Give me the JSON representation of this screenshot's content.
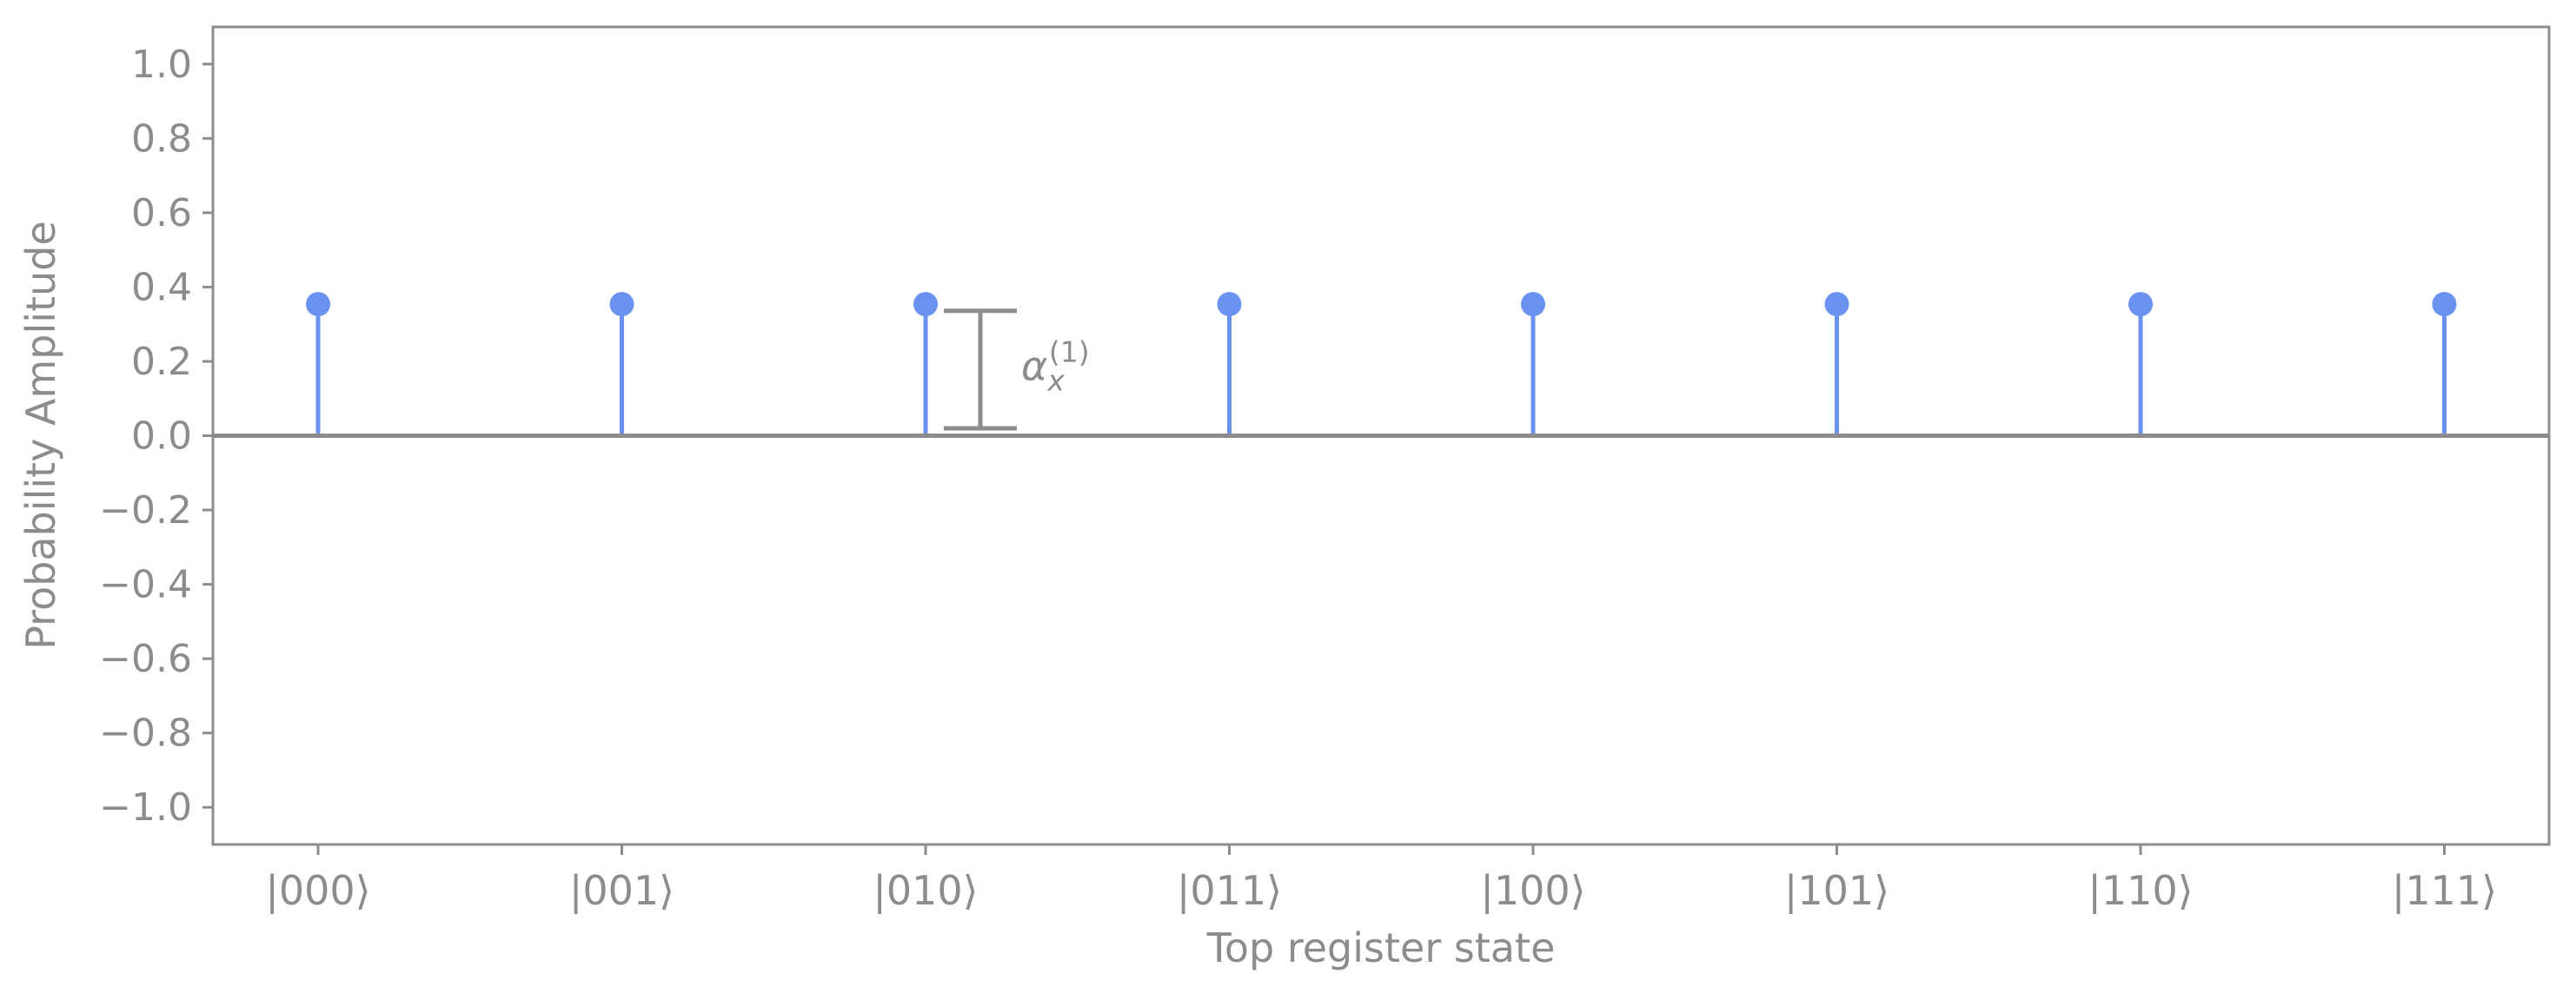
{
  "colors": {
    "stem": "#6a93f1",
    "axis": "#8c8c8c",
    "frame": "#8c8c8c",
    "background": "#ffffff"
  },
  "chart_data": {
    "type": "stem",
    "categories": [
      "|000⟩",
      "|001⟩",
      "|010⟩",
      "|011⟩",
      "|100⟩",
      "|101⟩",
      "|110⟩",
      "|111⟩"
    ],
    "values": [
      0.354,
      0.354,
      0.354,
      0.354,
      0.354,
      0.354,
      0.354,
      0.354
    ],
    "xlabel": "Top register state",
    "ylabel": "Probability Amplitude",
    "ylim": [
      -1.1,
      1.1
    ],
    "yticks": [
      1.0,
      0.8,
      0.6,
      0.4,
      0.2,
      0.0,
      -0.2,
      -0.4,
      -0.6,
      -0.8,
      -1.0
    ],
    "ytick_labels": [
      "1.0",
      "0.8",
      "0.6",
      "0.4",
      "0.2",
      "0.0",
      "−0.2",
      "−0.4",
      "−0.6",
      "−0.8",
      "−1.0"
    ],
    "grid": false,
    "annotation": {
      "target_category": "|010⟩",
      "label_symbol": "α",
      "label_subscript": "x",
      "label_superscript": "(1)",
      "from": 0.02,
      "to": 0.336
    }
  }
}
